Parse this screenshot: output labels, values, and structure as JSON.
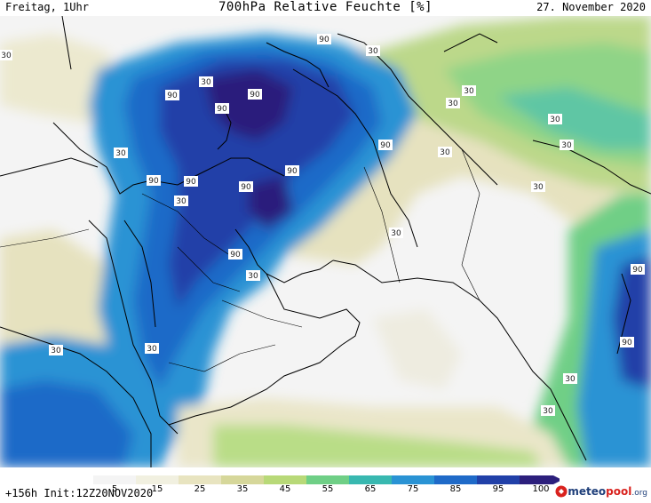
{
  "header": {
    "valid_time": "Freitag, 1Uhr",
    "title": "700hPa Relative Feuchte [%]",
    "date": "27. November 2020"
  },
  "footer": {
    "run_info": "+156h Init:12Z20NOV2020",
    "logo_brand": "meteo",
    "logo_brand_accent": "pool",
    "logo_suffix": ".org"
  },
  "colorbar": {
    "tick_labels": [
      "5",
      "15",
      "25",
      "35",
      "45",
      "55",
      "65",
      "75",
      "85",
      "95",
      "100"
    ],
    "colors": [
      "#f4f4f4",
      "#f1f0e0",
      "#e8e4c0",
      "#d6d79a",
      "#b8d978",
      "#6fcf86",
      "#38b8b0",
      "#2a93d4",
      "#1f6ac8",
      "#2140a8",
      "#2c1f7c"
    ]
  },
  "contour_labels": [
    "90",
    "90",
    "90",
    "90",
    "90",
    "90",
    "90",
    "90",
    "90",
    "90",
    "90",
    "90",
    "30",
    "30",
    "30",
    "30",
    "30",
    "30",
    "30",
    "30",
    "30",
    "30",
    "30",
    "30",
    "30",
    "30",
    "30",
    "30",
    "30"
  ]
}
